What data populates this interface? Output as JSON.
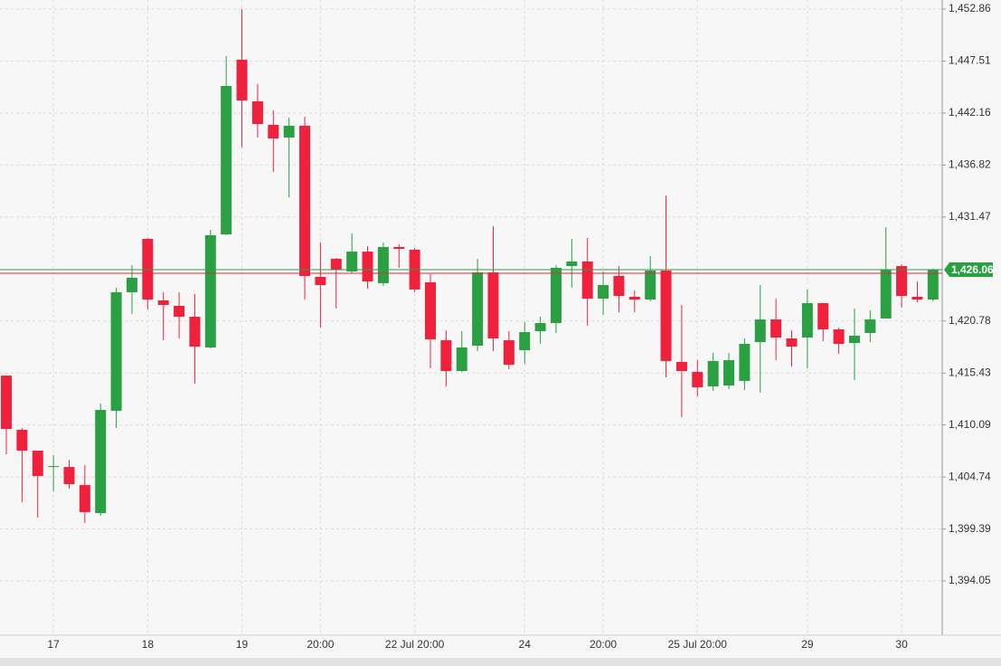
{
  "chart_data": {
    "type": "candlestick",
    "categories": [
      null,
      null,
      null,
      "17",
      null,
      null,
      null,
      null,
      null,
      "18",
      null,
      null,
      null,
      null,
      null,
      "19",
      null,
      null,
      null,
      null,
      "20:00",
      null,
      null,
      null,
      null,
      null,
      "22 Jul 20:00",
      null,
      null,
      null,
      null,
      null,
      null,
      "24",
      null,
      null,
      null,
      null,
      "20:00",
      null,
      null,
      null,
      null,
      null,
      "25 Jul 20:00",
      null,
      null,
      null,
      null,
      null,
      null,
      "29",
      null,
      null,
      null,
      null,
      null,
      "30",
      null,
      null
    ],
    "open": [
      1415.17,
      1409.59,
      1407.45,
      1405.77,
      1405.77,
      1403.91,
      1401.03,
      1411.55,
      1423.74,
      1429.23,
      1422.9,
      1422.34,
      1421.22,
      1418.06,
      1429.69,
      1447.65,
      1443.37,
      1440.95,
      1439.65,
      1440.86,
      1425.32,
      1427.18,
      1425.88,
      1427.92,
      1424.67,
      1428.39,
      1428.11,
      1424.76,
      1418.8,
      1415.64,
      1418.24,
      1425.78,
      1418.8,
      1417.78,
      1419.73,
      1420.57,
      1426.43,
      1426.9,
      1423.08,
      1425.41,
      1423.27,
      1422.99,
      1425.97,
      1416.57,
      1415.55,
      1414.06,
      1414.15,
      1414.62,
      1418.62,
      1420.94,
      1418.99,
      1419.08,
      1422.62,
      1419.92,
      1418.52,
      1419.55,
      1421.04,
      1426.43,
      1423.27,
      1422.99
    ],
    "high": [
      1415.17,
      1409.78,
      1407.45,
      1406.99,
      1406.5,
      1405.96,
      1412.29,
      1424.2,
      1426.53,
      1429.32,
      1423.74,
      1423.74,
      1423.55,
      1430.15,
      1448.02,
      1452.86,
      1445.14,
      1442.44,
      1441.69,
      1441.79,
      1428.85,
      1427.27,
      1429.78,
      1428.48,
      1428.85,
      1428.67,
      1428.29,
      1425.6,
      1419.82,
      1419.73,
      1427.18,
      1430.53,
      1419.73,
      1420.66,
      1421.22,
      1426.53,
      1429.23,
      1429.32,
      1425.88,
      1426.43,
      1423.92,
      1427.46,
      1433.69,
      1422.43,
      1416.76,
      1417.5,
      1417.5,
      1418.99,
      1424.48,
      1423.08,
      1419.82,
      1424.02,
      1422.62,
      1420.1,
      1422.06,
      1421.88,
      1430.43,
      1426.62,
      1424.85,
      1426.15
    ],
    "low": [
      1407.08,
      1402.15,
      1400.57,
      1403.27,
      1403.54,
      1400.01,
      1400.75,
      1409.78,
      1421.5,
      1421.97,
      1418.8,
      1418.99,
      1414.34,
      1417.97,
      1429.6,
      1438.62,
      1439.65,
      1436.11,
      1433.5,
      1422.99,
      1420.1,
      1422.06,
      1425.69,
      1424.11,
      1424.39,
      1426.25,
      1423.74,
      1415.92,
      1414.06,
      1415.55,
      1417.69,
      1417.69,
      1415.83,
      1416.38,
      1418.43,
      1419.55,
      1424.2,
      1420.29,
      1421.41,
      1421.69,
      1421.69,
      1422.81,
      1414.99,
      1410.89,
      1413.03,
      1413.59,
      1413.78,
      1413.69,
      1413.41,
      1416.76,
      1416.1,
      1415.92,
      1418.71,
      1417.41,
      1414.71,
      1418.62,
      1421.04,
      1422.16,
      1422.71,
      1422.81
    ],
    "close": [
      1409.68,
      1407.45,
      1404.84,
      1405.86,
      1404.01,
      1401.13,
      1411.64,
      1423.74,
      1425.23,
      1422.99,
      1422.43,
      1421.22,
      1418.15,
      1429.6,
      1444.95,
      1443.46,
      1441.04,
      1439.55,
      1440.86,
      1425.41,
      1424.48,
      1426.06,
      1427.92,
      1424.85,
      1428.39,
      1428.2,
      1424.02,
      1418.9,
      1415.64,
      1418.06,
      1425.78,
      1418.99,
      1416.29,
      1419.64,
      1420.57,
      1426.25,
      1426.9,
      1423.08,
      1424.48,
      1423.36,
      1422.99,
      1425.97,
      1416.67,
      1415.64,
      1413.96,
      1416.67,
      1416.76,
      1418.43,
      1420.94,
      1419.08,
      1418.15,
      1422.62,
      1419.92,
      1418.43,
      1419.27,
      1420.94,
      1426.06,
      1423.36,
      1422.99,
      1426.06
    ],
    "up_color": "#2aa043",
    "down_color": "#f0213c",
    "ylim": [
      1388.47,
      1453.79
    ],
    "yticks": [
      {
        "value": 1452.86,
        "label": "1,452.86"
      },
      {
        "value": 1447.51,
        "label": "1,447.51"
      },
      {
        "value": 1442.16,
        "label": "1,442.16"
      },
      {
        "value": 1436.82,
        "label": "1,436.82"
      },
      {
        "value": 1431.47,
        "label": "1,431.47"
      },
      {
        "value": 1420.78,
        "label": "1,420.78"
      },
      {
        "value": 1415.43,
        "label": "1,415.43"
      },
      {
        "value": 1410.09,
        "label": "1,410.09"
      },
      {
        "value": 1404.74,
        "label": "1,404.74"
      },
      {
        "value": 1399.39,
        "label": "1,399.39"
      },
      {
        "value": 1394.05,
        "label": "1,394.05"
      }
    ],
    "last_price": {
      "value": 1426.06,
      "label": "1,426.06"
    },
    "grid": true
  }
}
